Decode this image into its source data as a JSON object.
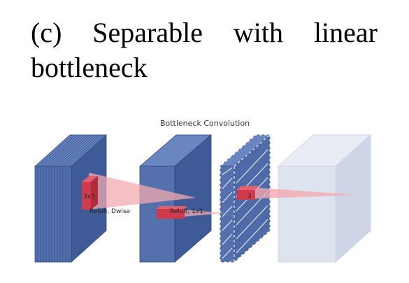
{
  "caption": "(c) Separable with linear bottleneck",
  "diagram": {
    "title": "Bottleneck Convolution",
    "kernel_label": "3x3",
    "dwise_label": "Relu6, Dwise",
    "pointwise_label": "Relu6, 1x1",
    "linear_kernel_label": "3",
    "colors": {
      "block_front": "#5470ad",
      "block_side": "#3e5a97",
      "block_top": "#6a86c0",
      "block_edge": "#2f4780",
      "faded_front": "#dde3ef",
      "faded_side": "#cdd5e6",
      "faded_top": "#e8ecf5",
      "kernel": "#cf3b4c",
      "projection": "#f2a9b0"
    }
  }
}
